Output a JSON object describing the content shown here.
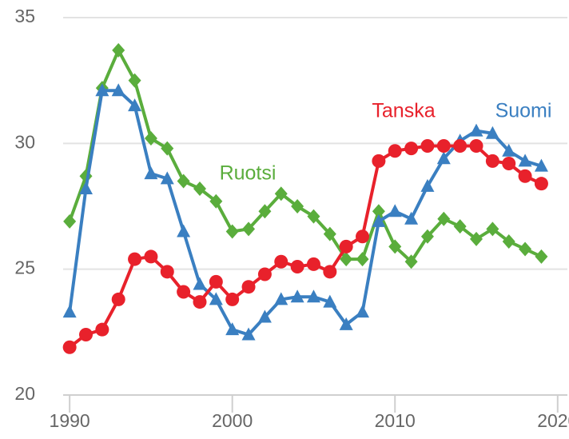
{
  "chart_data": {
    "type": "line",
    "x": [
      1990,
      1991,
      1992,
      1993,
      1994,
      1995,
      1996,
      1997,
      1998,
      1999,
      2000,
      2001,
      2002,
      2003,
      2004,
      2005,
      2006,
      2007,
      2008,
      2009,
      2010,
      2011,
      2012,
      2013,
      2014,
      2015,
      2016,
      2017,
      2018,
      2019
    ],
    "series": [
      {
        "name": "Ruotsi",
        "color": "#5aad3c",
        "marker": "diamond",
        "values": [
          26.9,
          28.7,
          32.2,
          33.7,
          32.5,
          30.2,
          29.8,
          28.5,
          28.2,
          27.7,
          26.5,
          26.6,
          27.3,
          28.0,
          27.5,
          27.1,
          26.4,
          25.4,
          25.4,
          27.3,
          25.9,
          25.3,
          26.3,
          27.0,
          26.7,
          26.2,
          26.6,
          26.1,
          25.8,
          25.5
        ]
      },
      {
        "name": "Suomi",
        "color": "#3a7fc1",
        "marker": "triangle",
        "values": [
          23.3,
          28.2,
          32.1,
          32.1,
          31.5,
          28.8,
          28.6,
          26.5,
          24.4,
          23.8,
          22.6,
          22.4,
          23.1,
          23.8,
          23.9,
          23.9,
          23.7,
          22.8,
          23.3,
          26.9,
          27.3,
          27.0,
          28.3,
          29.4,
          30.1,
          30.5,
          30.4,
          29.7,
          29.3,
          29.1
        ]
      },
      {
        "name": "Tanska",
        "color": "#e8212b",
        "marker": "circle",
        "values": [
          21.9,
          22.4,
          22.6,
          23.8,
          25.4,
          25.5,
          24.9,
          24.1,
          23.7,
          24.5,
          23.8,
          24.3,
          24.8,
          25.3,
          25.1,
          25.2,
          24.9,
          25.9,
          26.3,
          29.3,
          29.7,
          29.8,
          29.9,
          29.9,
          29.9,
          29.9,
          29.3,
          29.2,
          28.7,
          28.4
        ]
      }
    ],
    "xlim": [
      1989.6,
      2020.6
    ],
    "xticks": [
      1990,
      2000,
      2010,
      2020
    ],
    "ylim": [
      20,
      35
    ],
    "yticks": [
      20,
      25,
      30,
      35
    ],
    "grid": true
  }
}
